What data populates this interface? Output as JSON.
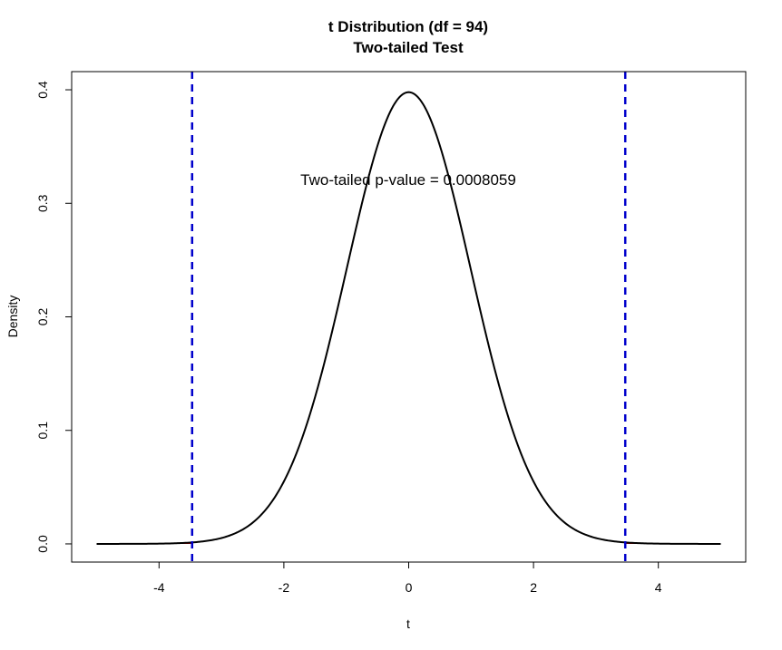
{
  "chart_data": {
    "type": "line",
    "title": "t Distribution (df = 94)",
    "subtitle": "Two-tailed Test",
    "xlabel": "t",
    "ylabel": "Density",
    "xlim": [
      -5.4,
      5.4
    ],
    "ylim": [
      -0.016,
      0.416
    ],
    "x_ticks": [
      -4,
      -2,
      0,
      2,
      4
    ],
    "x_tick_labels": [
      "-4",
      "-2",
      "0",
      "2",
      "4"
    ],
    "y_ticks": [
      0.0,
      0.1,
      0.2,
      0.3,
      0.4
    ],
    "y_tick_labels": [
      "0.0",
      "0.1",
      "0.2",
      "0.3",
      "0.4"
    ],
    "df": 94,
    "x_range": [
      -5,
      5
    ],
    "critical_values": [
      -3.47,
      3.47
    ],
    "annotation": {
      "text": "Two-tailed p-value = 0.0008059",
      "x": 0,
      "y": 0.32
    },
    "grid": false,
    "colors": {
      "curve": "#000000",
      "critical_line": "#0000cc",
      "tail_fill": "#cc0000",
      "box": "#000000"
    }
  }
}
